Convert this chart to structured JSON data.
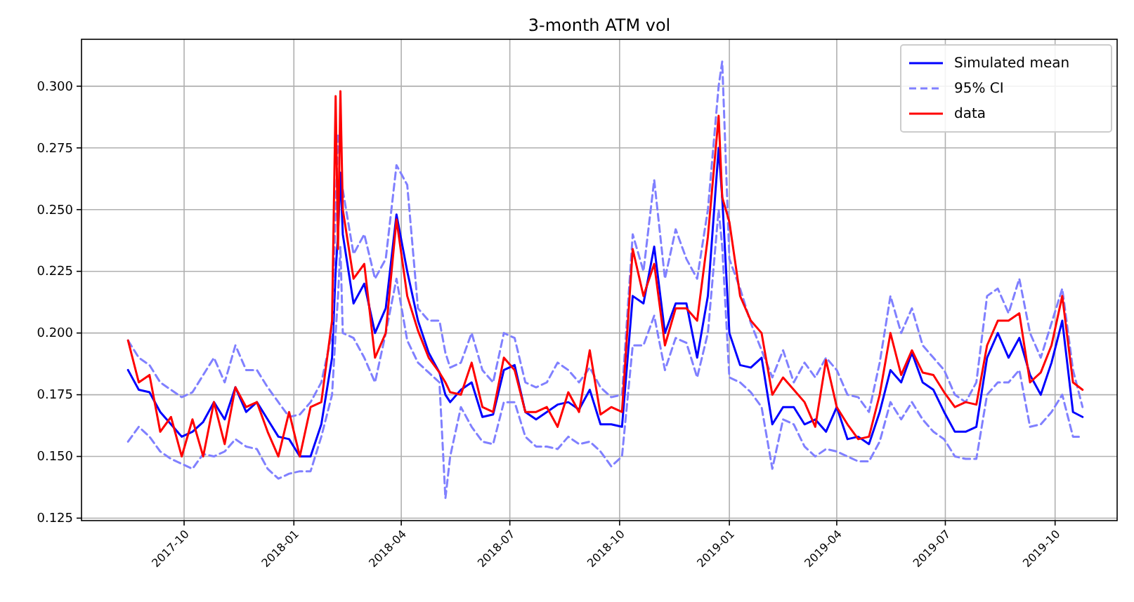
{
  "chart_data": {
    "type": "line",
    "title": "3-month ATM vol",
    "grid": true,
    "legend": "top right",
    "x": [
      "2017-08-15",
      "2017-08-24",
      "2017-09-02",
      "2017-09-11",
      "2017-09-20",
      "2017-09-29",
      "2017-10-08",
      "2017-10-17",
      "2017-10-26",
      "2017-11-04",
      "2017-11-13",
      "2017-11-22",
      "2017-12-01",
      "2017-12-10",
      "2017-12-19",
      "2017-12-28",
      "2018-01-06",
      "2018-01-15",
      "2018-01-24",
      "2018-02-02",
      "2018-02-05",
      "2018-02-07",
      "2018-02-09",
      "2018-02-11",
      "2018-02-20",
      "2018-03-01",
      "2018-03-10",
      "2018-03-19",
      "2018-03-28",
      "2018-04-06",
      "2018-04-15",
      "2018-04-24",
      "2018-05-03",
      "2018-05-08",
      "2018-05-12",
      "2018-05-21",
      "2018-05-30",
      "2018-06-08",
      "2018-06-17",
      "2018-06-26",
      "2018-07-05",
      "2018-07-14",
      "2018-07-23",
      "2018-08-01",
      "2018-08-10",
      "2018-08-19",
      "2018-08-28",
      "2018-09-06",
      "2018-09-15",
      "2018-09-24",
      "2018-10-03",
      "2018-10-12",
      "2018-10-21",
      "2018-10-30",
      "2018-11-08",
      "2018-11-17",
      "2018-11-26",
      "2018-12-05",
      "2018-12-14",
      "2018-12-23",
      "2018-12-26",
      "2019-01-01",
      "2019-01-10",
      "2019-01-19",
      "2019-01-28",
      "2019-02-06",
      "2019-02-15",
      "2019-02-24",
      "2019-03-05",
      "2019-03-14",
      "2019-03-23",
      "2019-04-01",
      "2019-04-10",
      "2019-04-19",
      "2019-04-28",
      "2019-05-07",
      "2019-05-16",
      "2019-05-25",
      "2019-06-03",
      "2019-06-12",
      "2019-06-21",
      "2019-06-30",
      "2019-07-09",
      "2019-07-18",
      "2019-07-27",
      "2019-08-05",
      "2019-08-14",
      "2019-08-23",
      "2019-09-01",
      "2019-09-10",
      "2019-09-19",
      "2019-09-28",
      "2019-10-07",
      "2019-10-16",
      "2019-10-24"
    ],
    "xlim": [
      "2017-07-07",
      "2019-11-22"
    ],
    "xticks": [
      "2017-10",
      "2018-01",
      "2018-04",
      "2018-07",
      "2018-10",
      "2019-01",
      "2019-04",
      "2019-07",
      "2019-10"
    ],
    "ylim": [
      0.124,
      0.319
    ],
    "yticks": [
      {
        "value": 0.125,
        "label": "0.125"
      },
      {
        "value": 0.15,
        "label": "0.150"
      },
      {
        "value": 0.175,
        "label": "0.175"
      },
      {
        "value": 0.2,
        "label": "0.200"
      },
      {
        "value": 0.225,
        "label": "0.225"
      },
      {
        "value": 0.25,
        "label": "0.250"
      },
      {
        "value": 0.275,
        "label": "0.275"
      },
      {
        "value": 0.3,
        "label": "0.300"
      }
    ],
    "series": [
      {
        "name": "Simulated mean",
        "color": "#0000ff",
        "line_style": "solid",
        "values": [
          0.185,
          0.177,
          0.176,
          0.168,
          0.163,
          0.158,
          0.16,
          0.164,
          0.172,
          0.165,
          0.178,
          0.168,
          0.172,
          0.165,
          0.158,
          0.157,
          0.15,
          0.15,
          0.163,
          0.19,
          0.225,
          0.24,
          0.265,
          0.24,
          0.212,
          0.22,
          0.2,
          0.21,
          0.248,
          0.225,
          0.205,
          0.192,
          0.184,
          0.175,
          0.172,
          0.177,
          0.18,
          0.166,
          0.167,
          0.185,
          0.187,
          0.168,
          0.165,
          0.168,
          0.171,
          0.172,
          0.169,
          0.177,
          0.163,
          0.163,
          0.162,
          0.215,
          0.212,
          0.235,
          0.2,
          0.212,
          0.212,
          0.19,
          0.215,
          0.275,
          0.255,
          0.2,
          0.187,
          0.186,
          0.19,
          0.163,
          0.17,
          0.17,
          0.163,
          0.165,
          0.16,
          0.17,
          0.157,
          0.158,
          0.155,
          0.168,
          0.185,
          0.18,
          0.192,
          0.18,
          0.177,
          0.168,
          0.16,
          0.16,
          0.162,
          0.19,
          0.2,
          0.19,
          0.198,
          0.183,
          0.175,
          0.188,
          0.205,
          0.168,
          0.166
        ]
      },
      {
        "name": "95% CI",
        "color": "#8080ff",
        "line_style": "dashed",
        "values": [
          0.197,
          0.19,
          0.187,
          0.18,
          0.177,
          0.174,
          0.176,
          0.183,
          0.19,
          0.18,
          0.195,
          0.185,
          0.185,
          0.178,
          0.172,
          0.166,
          0.167,
          0.172,
          0.18,
          0.2,
          0.25,
          0.28,
          null,
          0.258,
          0.232,
          0.24,
          0.222,
          0.23,
          0.268,
          0.26,
          0.21,
          0.205,
          0.205,
          0.192,
          0.186,
          0.188,
          0.2,
          0.185,
          0.18,
          0.2,
          0.198,
          0.18,
          0.178,
          0.18,
          0.188,
          0.185,
          0.18,
          0.186,
          0.178,
          0.174,
          0.175,
          0.24,
          0.225,
          0.262,
          0.222,
          0.242,
          0.23,
          0.222,
          0.25,
          0.3,
          0.31,
          0.23,
          0.218,
          0.204,
          0.193,
          0.182,
          0.193,
          0.18,
          0.188,
          0.182,
          0.19,
          0.185,
          0.175,
          0.174,
          0.168,
          0.188,
          0.215,
          0.2,
          0.21,
          0.195,
          0.19,
          0.185,
          0.175,
          0.172,
          0.18,
          0.215,
          0.218,
          0.208,
          0.222,
          0.2,
          0.19,
          0.204,
          0.218,
          0.185,
          0.17
        ]
      },
      {
        "color": "#8080ff",
        "line_style": "dashed",
        "values": [
          0.156,
          0.162,
          0.158,
          0.152,
          0.149,
          0.147,
          0.145,
          0.151,
          0.15,
          0.152,
          0.157,
          0.154,
          0.153,
          0.145,
          0.141,
          0.143,
          0.144,
          0.144,
          0.158,
          0.175,
          0.2,
          0.215,
          0.235,
          0.2,
          0.198,
          0.19,
          0.18,
          0.2,
          0.222,
          0.197,
          0.188,
          0.184,
          0.18,
          0.133,
          0.15,
          0.17,
          0.162,
          0.156,
          0.155,
          0.172,
          0.172,
          0.158,
          0.154,
          0.154,
          0.153,
          0.158,
          0.155,
          0.156,
          0.152,
          0.146,
          0.15,
          0.195,
          0.195,
          0.207,
          0.185,
          0.198,
          0.196,
          0.182,
          0.2,
          0.25,
          0.235,
          0.182,
          0.18,
          0.176,
          0.17,
          0.145,
          0.165,
          0.163,
          0.154,
          0.15,
          0.153,
          0.152,
          0.15,
          0.148,
          0.148,
          0.156,
          0.172,
          0.165,
          0.172,
          0.165,
          0.16,
          0.157,
          0.15,
          0.149,
          0.149,
          0.175,
          0.18,
          0.18,
          0.185,
          0.162,
          0.163,
          0.168,
          0.175,
          0.158,
          0.158
        ]
      },
      {
        "name": "data",
        "color": "#ff0000",
        "line_style": "solid",
        "values": [
          0.197,
          0.18,
          0.183,
          0.16,
          0.166,
          0.15,
          0.165,
          0.15,
          0.172,
          0.155,
          0.178,
          0.17,
          0.172,
          0.16,
          0.15,
          0.168,
          0.15,
          0.17,
          0.172,
          0.205,
          0.296,
          0.234,
          0.298,
          0.25,
          0.222,
          0.228,
          0.19,
          0.2,
          0.246,
          0.215,
          0.201,
          0.19,
          0.184,
          0.18,
          0.176,
          0.175,
          0.188,
          0.17,
          0.168,
          0.19,
          0.185,
          0.168,
          0.168,
          0.17,
          0.162,
          0.176,
          0.168,
          0.193,
          0.167,
          0.17,
          0.168,
          0.234,
          0.215,
          0.228,
          0.195,
          0.21,
          0.21,
          0.205,
          0.239,
          0.288,
          0.255,
          0.245,
          0.215,
          0.205,
          0.2,
          0.175,
          0.182,
          0.177,
          0.172,
          0.162,
          0.189,
          0.17,
          0.163,
          0.157,
          0.158,
          0.175,
          0.2,
          0.183,
          0.193,
          0.184,
          0.183,
          0.176,
          0.17,
          0.172,
          0.171,
          0.195,
          0.205,
          0.205,
          0.208,
          0.18,
          0.184,
          0.195,
          0.215,
          0.18,
          0.177
        ]
      }
    ]
  }
}
